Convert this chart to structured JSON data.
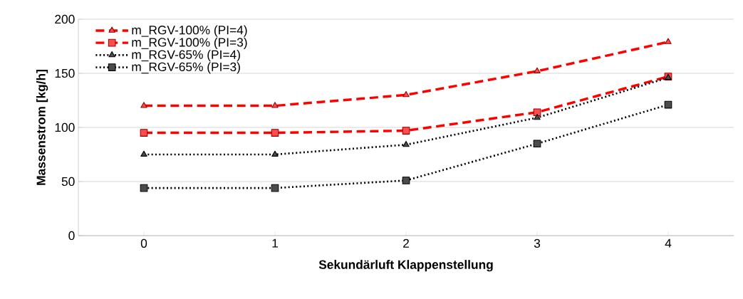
{
  "chart_data": {
    "type": "line",
    "xlabel": "Sekundärluft Klappenstellung",
    "ylabel": "Massenstrom [kg/h]",
    "categories": [
      "0",
      "1",
      "2",
      "3",
      "4"
    ],
    "series": [
      {
        "name": "m_RGV-100% (PI=4)",
        "color": "#ff0000",
        "marker": "triangle",
        "line_style": "dashed",
        "values": [
          120,
          120,
          130,
          152,
          179
        ]
      },
      {
        "name": "m_RGV-100% (PI=3)",
        "color": "#ff0000",
        "marker": "square",
        "line_style": "dashed",
        "values": [
          95,
          95,
          97,
          114,
          147
        ]
      },
      {
        "name": "m_RGV-65% (PI=4)",
        "color": "#000000",
        "marker": "triangle",
        "line_style": "dotted",
        "values": [
          75,
          75,
          84,
          109,
          146
        ]
      },
      {
        "name": "m_RGV-65% (PI=3)",
        "color": "#000000",
        "marker": "square",
        "line_style": "dotted",
        "values": [
          44,
          44,
          51,
          85,
          121
        ]
      }
    ],
    "ylim": [
      0,
      200
    ],
    "yticks": [
      0,
      50,
      100,
      150,
      200
    ],
    "grid": "y",
    "legend": "top left"
  }
}
